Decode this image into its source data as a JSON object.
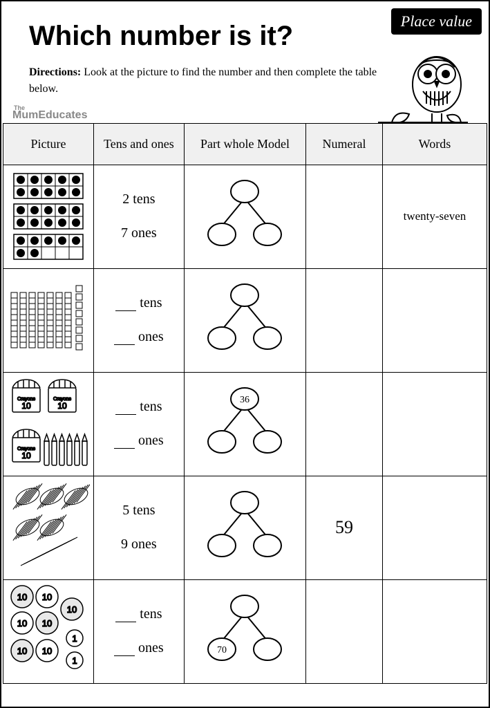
{
  "badge": "Place value",
  "title": "Which number is it?",
  "directions_label": "Directions:",
  "directions_text": "Look at the picture to find the number and then complete the table below.",
  "watermark_the": "The",
  "watermark_main": "MumEducates",
  "headers": {
    "picture": "Picture",
    "tensones": "Tens and ones",
    "partwhole": "Part whole Model",
    "numeral": "Numeral",
    "words": "Words"
  },
  "rows": [
    {
      "tens": "2",
      "tens_blank": false,
      "ones": "7",
      "ones_blank": false,
      "pw_top": "",
      "pw_left": "",
      "pw_right": "",
      "numeral": "",
      "words": "twenty-seven",
      "words_fontsize": 17
    },
    {
      "tens": "",
      "tens_blank": true,
      "ones": "",
      "ones_blank": true,
      "pw_top": "",
      "pw_left": "",
      "pw_right": "",
      "numeral": "",
      "words": ""
    },
    {
      "tens": "",
      "tens_blank": true,
      "ones": "",
      "ones_blank": true,
      "pw_top": "36",
      "pw_left": "",
      "pw_right": "",
      "numeral": "",
      "words": ""
    },
    {
      "tens": "5",
      "tens_blank": false,
      "ones": "9",
      "ones_blank": false,
      "pw_top": "",
      "pw_left": "",
      "pw_right": "",
      "numeral": "59",
      "words": ""
    },
    {
      "tens": "",
      "tens_blank": true,
      "ones": "",
      "ones_blank": true,
      "pw_top": "",
      "pw_left": "70",
      "pw_right": "",
      "numeral": "",
      "words": ""
    }
  ],
  "labels": {
    "tens_word": "tens",
    "ones_word": "ones"
  },
  "colors": {
    "bg": "#ffffff",
    "border": "#000000",
    "header_bg": "#f0f0f0",
    "watermark": "#888888",
    "light_circle": "#e8e8e8"
  }
}
